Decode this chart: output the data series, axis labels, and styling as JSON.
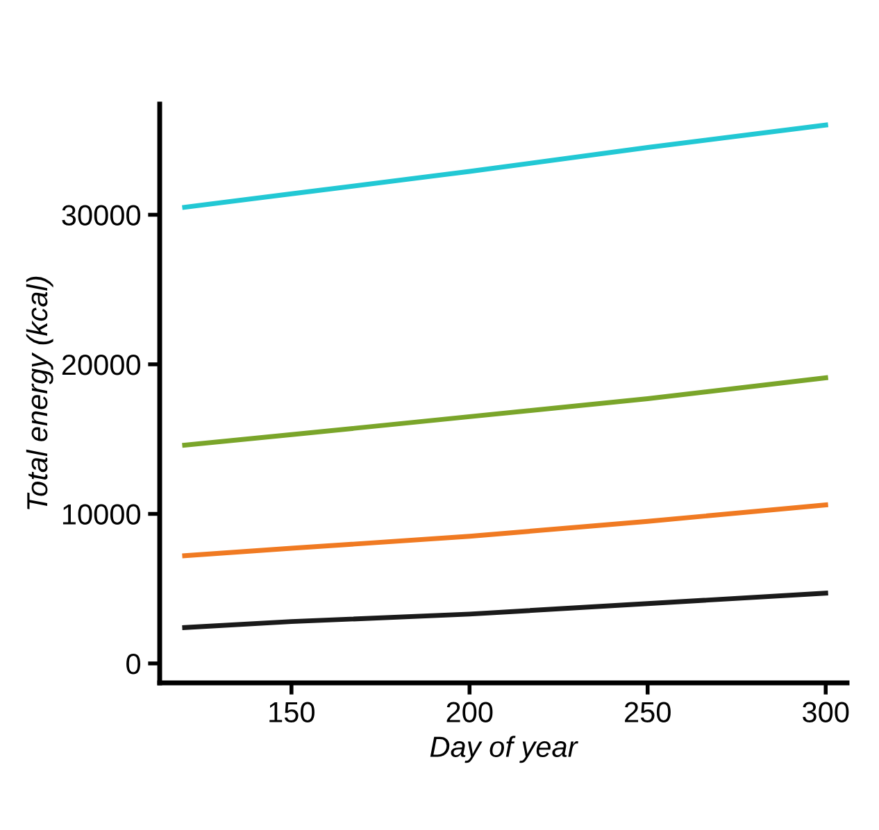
{
  "chart_data": {
    "type": "line",
    "xlabel": "Day of year",
    "ylabel": "Total energy (kcal)",
    "x": [
      120,
      150,
      200,
      250,
      300
    ],
    "series": [
      {
        "color": "#22c8d4",
        "values": [
          30500,
          31400,
          32900,
          34500,
          36000
        ]
      },
      {
        "color": "#7aa52a",
        "values": [
          14600,
          15300,
          16500,
          17700,
          19100
        ]
      },
      {
        "color": "#f07a22",
        "values": [
          7200,
          7700,
          8500,
          9500,
          10600
        ]
      },
      {
        "color": "#1a1a1a",
        "values": [
          2400,
          2800,
          3300,
          4000,
          4700
        ]
      }
    ],
    "xlim": [
      113,
      306
    ],
    "ylim": [
      -1300,
      37400
    ],
    "xticks": [
      150,
      200,
      250,
      300
    ],
    "yticks": [
      0,
      10000,
      20000,
      30000
    ],
    "grid": false,
    "legend": false,
    "marker": "none",
    "line_style": "solid"
  }
}
